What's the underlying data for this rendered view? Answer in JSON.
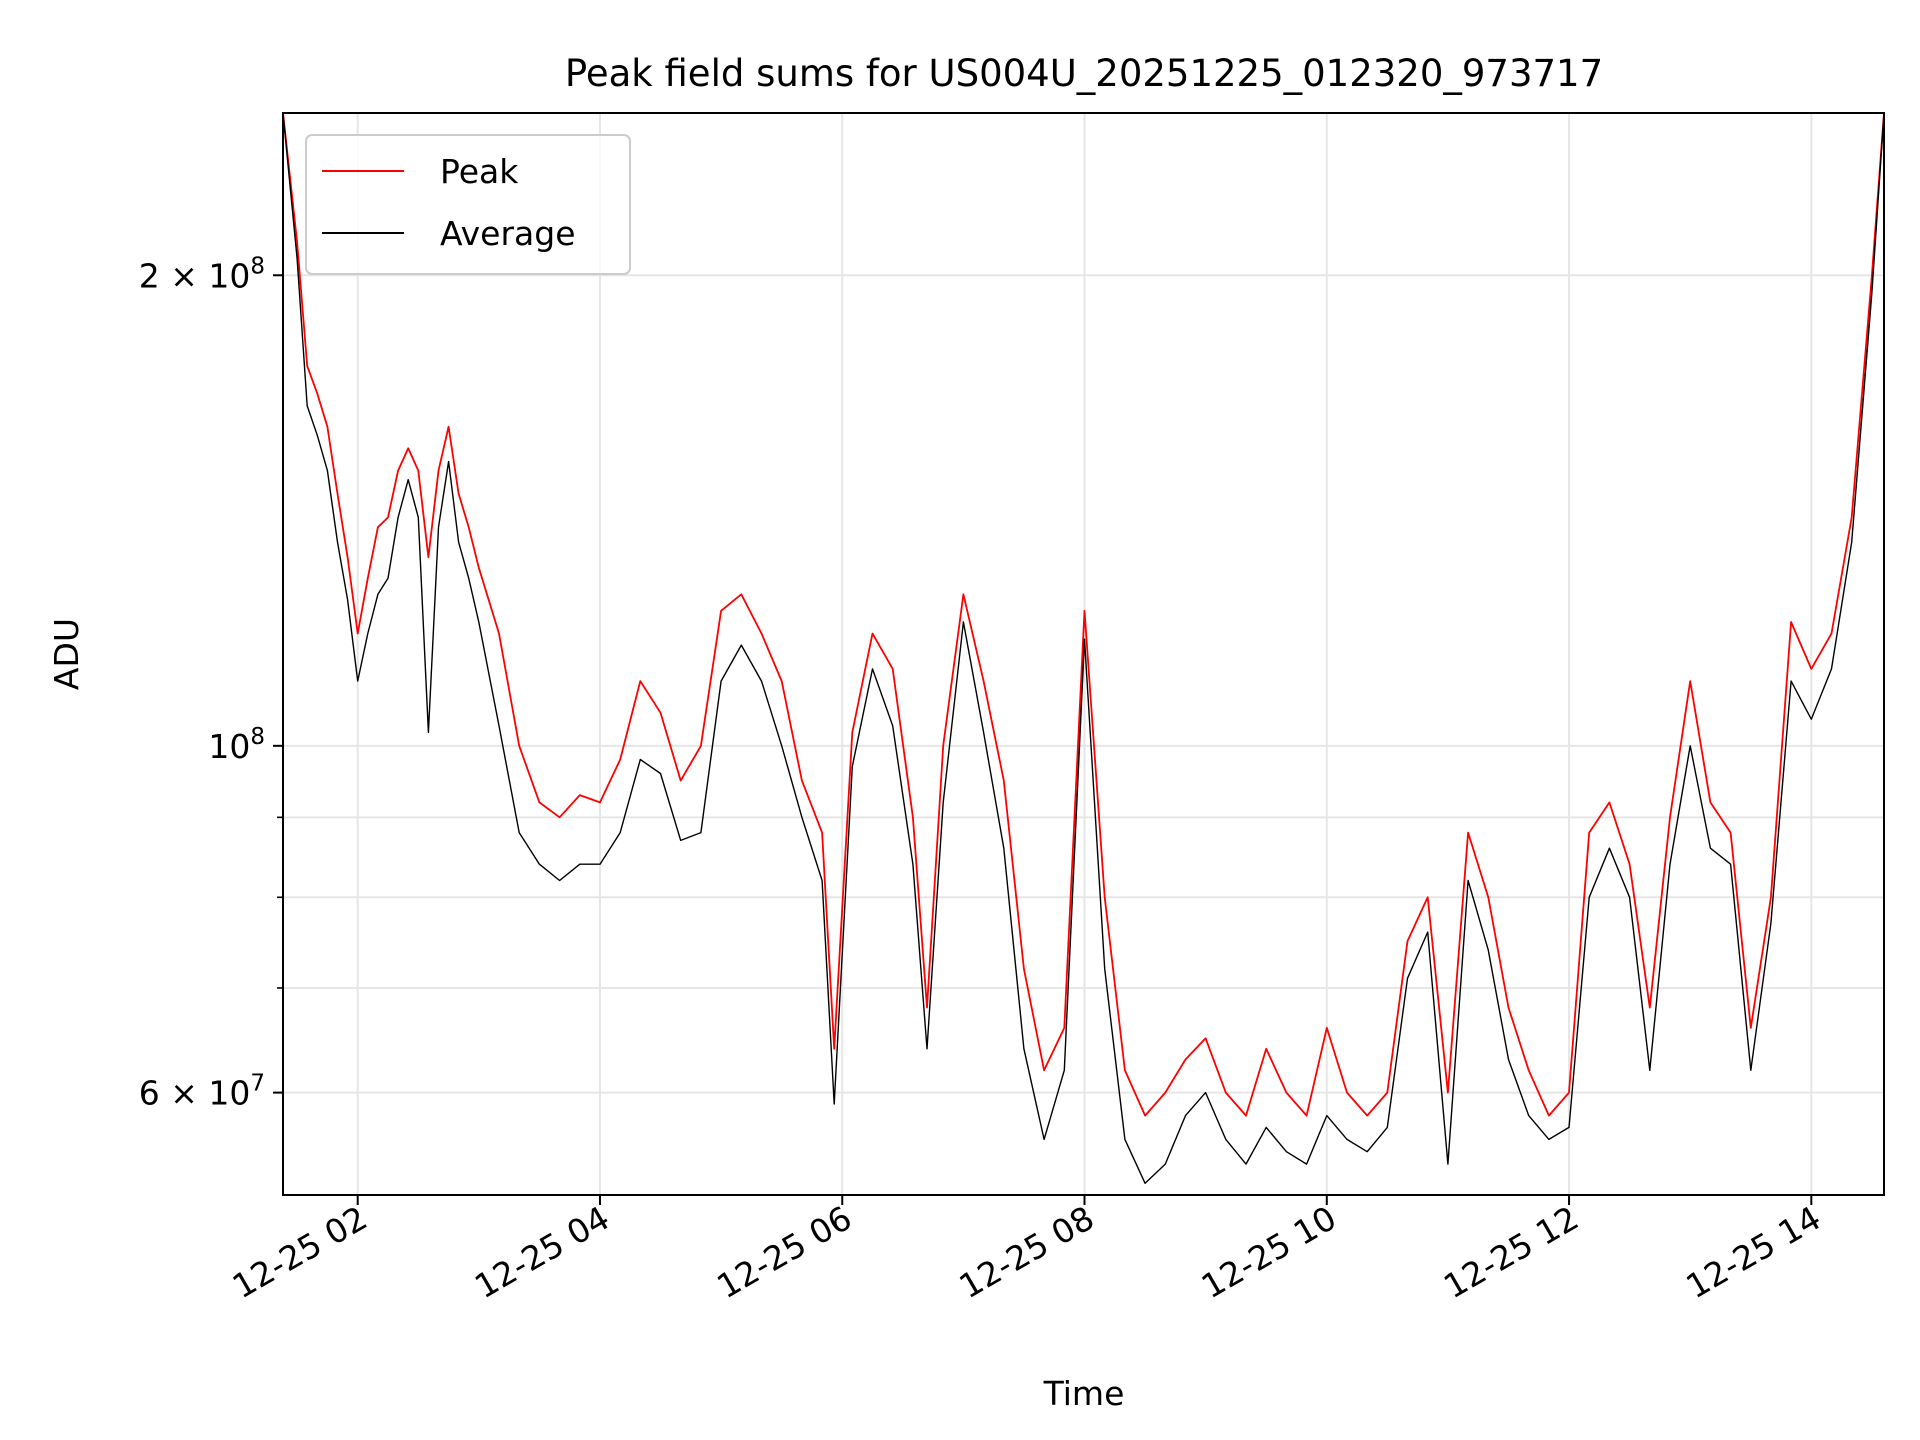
{
  "chart_data": {
    "type": "line",
    "title": "Peak field sums for US004U_20251225_012320_973717",
    "xlabel": "Time",
    "ylabel": "ADU",
    "xlim": [
      "2025-12-25 01:23",
      "2025-12-25 14:36"
    ],
    "ylim": [
      51600000,
      254000000
    ],
    "yscale": "log",
    "grid": true,
    "legend_position": "top-left",
    "x_ticks": [
      "12-25 02",
      "12-25 04",
      "12-25 06",
      "12-25 08",
      "12-25 10",
      "12-25 12",
      "12-25 14"
    ],
    "x_tick_values": [
      "2025-12-25 02:00",
      "2025-12-25 04:00",
      "2025-12-25 06:00",
      "2025-12-25 08:00",
      "2025-12-25 10:00",
      "2025-12-25 12:00",
      "2025-12-25 14:00"
    ],
    "y_major_ticks": [
      {
        "value": 60000000,
        "mantissa": "6",
        "exponent": "7"
      },
      {
        "value": 100000000,
        "mantissa": "",
        "exponent": "8"
      },
      {
        "value": 200000000,
        "mantissa": "2",
        "exponent": "8"
      }
    ],
    "y_minor_ticks": [
      70000000,
      80000000,
      90000000
    ],
    "x": [
      "2025-12-25 01:23",
      "2025-12-25 01:30",
      "2025-12-25 01:35",
      "2025-12-25 01:40",
      "2025-12-25 01:45",
      "2025-12-25 01:50",
      "2025-12-25 01:55",
      "2025-12-25 02:00",
      "2025-12-25 02:05",
      "2025-12-25 02:10",
      "2025-12-25 02:15",
      "2025-12-25 02:20",
      "2025-12-25 02:25",
      "2025-12-25 02:30",
      "2025-12-25 02:35",
      "2025-12-25 02:40",
      "2025-12-25 02:45",
      "2025-12-25 02:50",
      "2025-12-25 02:55",
      "2025-12-25 03:00",
      "2025-12-25 03:10",
      "2025-12-25 03:20",
      "2025-12-25 03:30",
      "2025-12-25 03:40",
      "2025-12-25 03:50",
      "2025-12-25 04:00",
      "2025-12-25 04:10",
      "2025-12-25 04:20",
      "2025-12-25 04:30",
      "2025-12-25 04:40",
      "2025-12-25 04:50",
      "2025-12-25 05:00",
      "2025-12-25 05:10",
      "2025-12-25 05:20",
      "2025-12-25 05:30",
      "2025-12-25 05:40",
      "2025-12-25 05:50",
      "2025-12-25 05:56",
      "2025-12-25 06:05",
      "2025-12-25 06:15",
      "2025-12-25 06:25",
      "2025-12-25 06:35",
      "2025-12-25 06:42",
      "2025-12-25 06:50",
      "2025-12-25 07:00",
      "2025-12-25 07:10",
      "2025-12-25 07:20",
      "2025-12-25 07:30",
      "2025-12-25 07:40",
      "2025-12-25 07:50",
      "2025-12-25 08:00",
      "2025-12-25 08:10",
      "2025-12-25 08:20",
      "2025-12-25 08:30",
      "2025-12-25 08:40",
      "2025-12-25 08:50",
      "2025-12-25 09:00",
      "2025-12-25 09:10",
      "2025-12-25 09:20",
      "2025-12-25 09:30",
      "2025-12-25 09:40",
      "2025-12-25 09:50",
      "2025-12-25 10:00",
      "2025-12-25 10:10",
      "2025-12-25 10:20",
      "2025-12-25 10:30",
      "2025-12-25 10:40",
      "2025-12-25 10:50",
      "2025-12-25 11:00",
      "2025-12-25 11:10",
      "2025-12-25 11:20",
      "2025-12-25 11:30",
      "2025-12-25 11:40",
      "2025-12-25 11:50",
      "2025-12-25 12:00",
      "2025-12-25 12:10",
      "2025-12-25 12:20",
      "2025-12-25 12:30",
      "2025-12-25 12:40",
      "2025-12-25 12:50",
      "2025-12-25 13:00",
      "2025-12-25 13:10",
      "2025-12-25 13:20",
      "2025-12-25 13:30",
      "2025-12-25 13:40",
      "2025-12-25 13:50",
      "2025-12-25 14:00",
      "2025-12-25 14:10",
      "2025-12-25 14:20",
      "2025-12-25 14:30",
      "2025-12-25 14:36"
    ],
    "series": [
      {
        "name": "Peak",
        "color": "#ff0000",
        "values": [
          254000000,
          210000000,
          175000000,
          168000000,
          160000000,
          145000000,
          132000000,
          118000000,
          128000000,
          138000000,
          140000000,
          150000000,
          155000000,
          150000000,
          132000000,
          150000000,
          160000000,
          145000000,
          138000000,
          130000000,
          118000000,
          100000000,
          92000000,
          90000000,
          93000000,
          92000000,
          98000000,
          110000000,
          105000000,
          95000000,
          100000000,
          122000000,
          125000000,
          118000000,
          110000000,
          95000000,
          88000000,
          64000000,
          102000000,
          118000000,
          112000000,
          90000000,
          68000000,
          100000000,
          125000000,
          110000000,
          95000000,
          72000000,
          62000000,
          66000000,
          122000000,
          80000000,
          62000000,
          58000000,
          60000000,
          63000000,
          65000000,
          60000000,
          58000000,
          64000000,
          60000000,
          58000000,
          66000000,
          60000000,
          58000000,
          60000000,
          75000000,
          80000000,
          60000000,
          88000000,
          80000000,
          68000000,
          62000000,
          58000000,
          60000000,
          88000000,
          92000000,
          84000000,
          68000000,
          90000000,
          110000000,
          92000000,
          88000000,
          66000000,
          80000000,
          120000000,
          112000000,
          118000000,
          140000000,
          200000000,
          254000000
        ]
      },
      {
        "name": "Average",
        "color": "#000000",
        "values": [
          254000000,
          205000000,
          165000000,
          158000000,
          150000000,
          135000000,
          124000000,
          110000000,
          118000000,
          125000000,
          128000000,
          140000000,
          148000000,
          140000000,
          102000000,
          138000000,
          152000000,
          135000000,
          128000000,
          120000000,
          103000000,
          88000000,
          84000000,
          82000000,
          84000000,
          84000000,
          88000000,
          98000000,
          96000000,
          87000000,
          88000000,
          110000000,
          116000000,
          110000000,
          100000000,
          90000000,
          82000000,
          59000000,
          97000000,
          112000000,
          103000000,
          84000000,
          64000000,
          92000000,
          120000000,
          102000000,
          86000000,
          64000000,
          56000000,
          62000000,
          117000000,
          72000000,
          56000000,
          52500000,
          54000000,
          58000000,
          60000000,
          56000000,
          54000000,
          57000000,
          55000000,
          54000000,
          58000000,
          56000000,
          55000000,
          57000000,
          71000000,
          76000000,
          54000000,
          82000000,
          74000000,
          63000000,
          58000000,
          56000000,
          57000000,
          80000000,
          86000000,
          80000000,
          62000000,
          84000000,
          100000000,
          86000000,
          84000000,
          62000000,
          77000000,
          110000000,
          104000000,
          112000000,
          135000000,
          195000000,
          254000000
        ]
      }
    ]
  }
}
